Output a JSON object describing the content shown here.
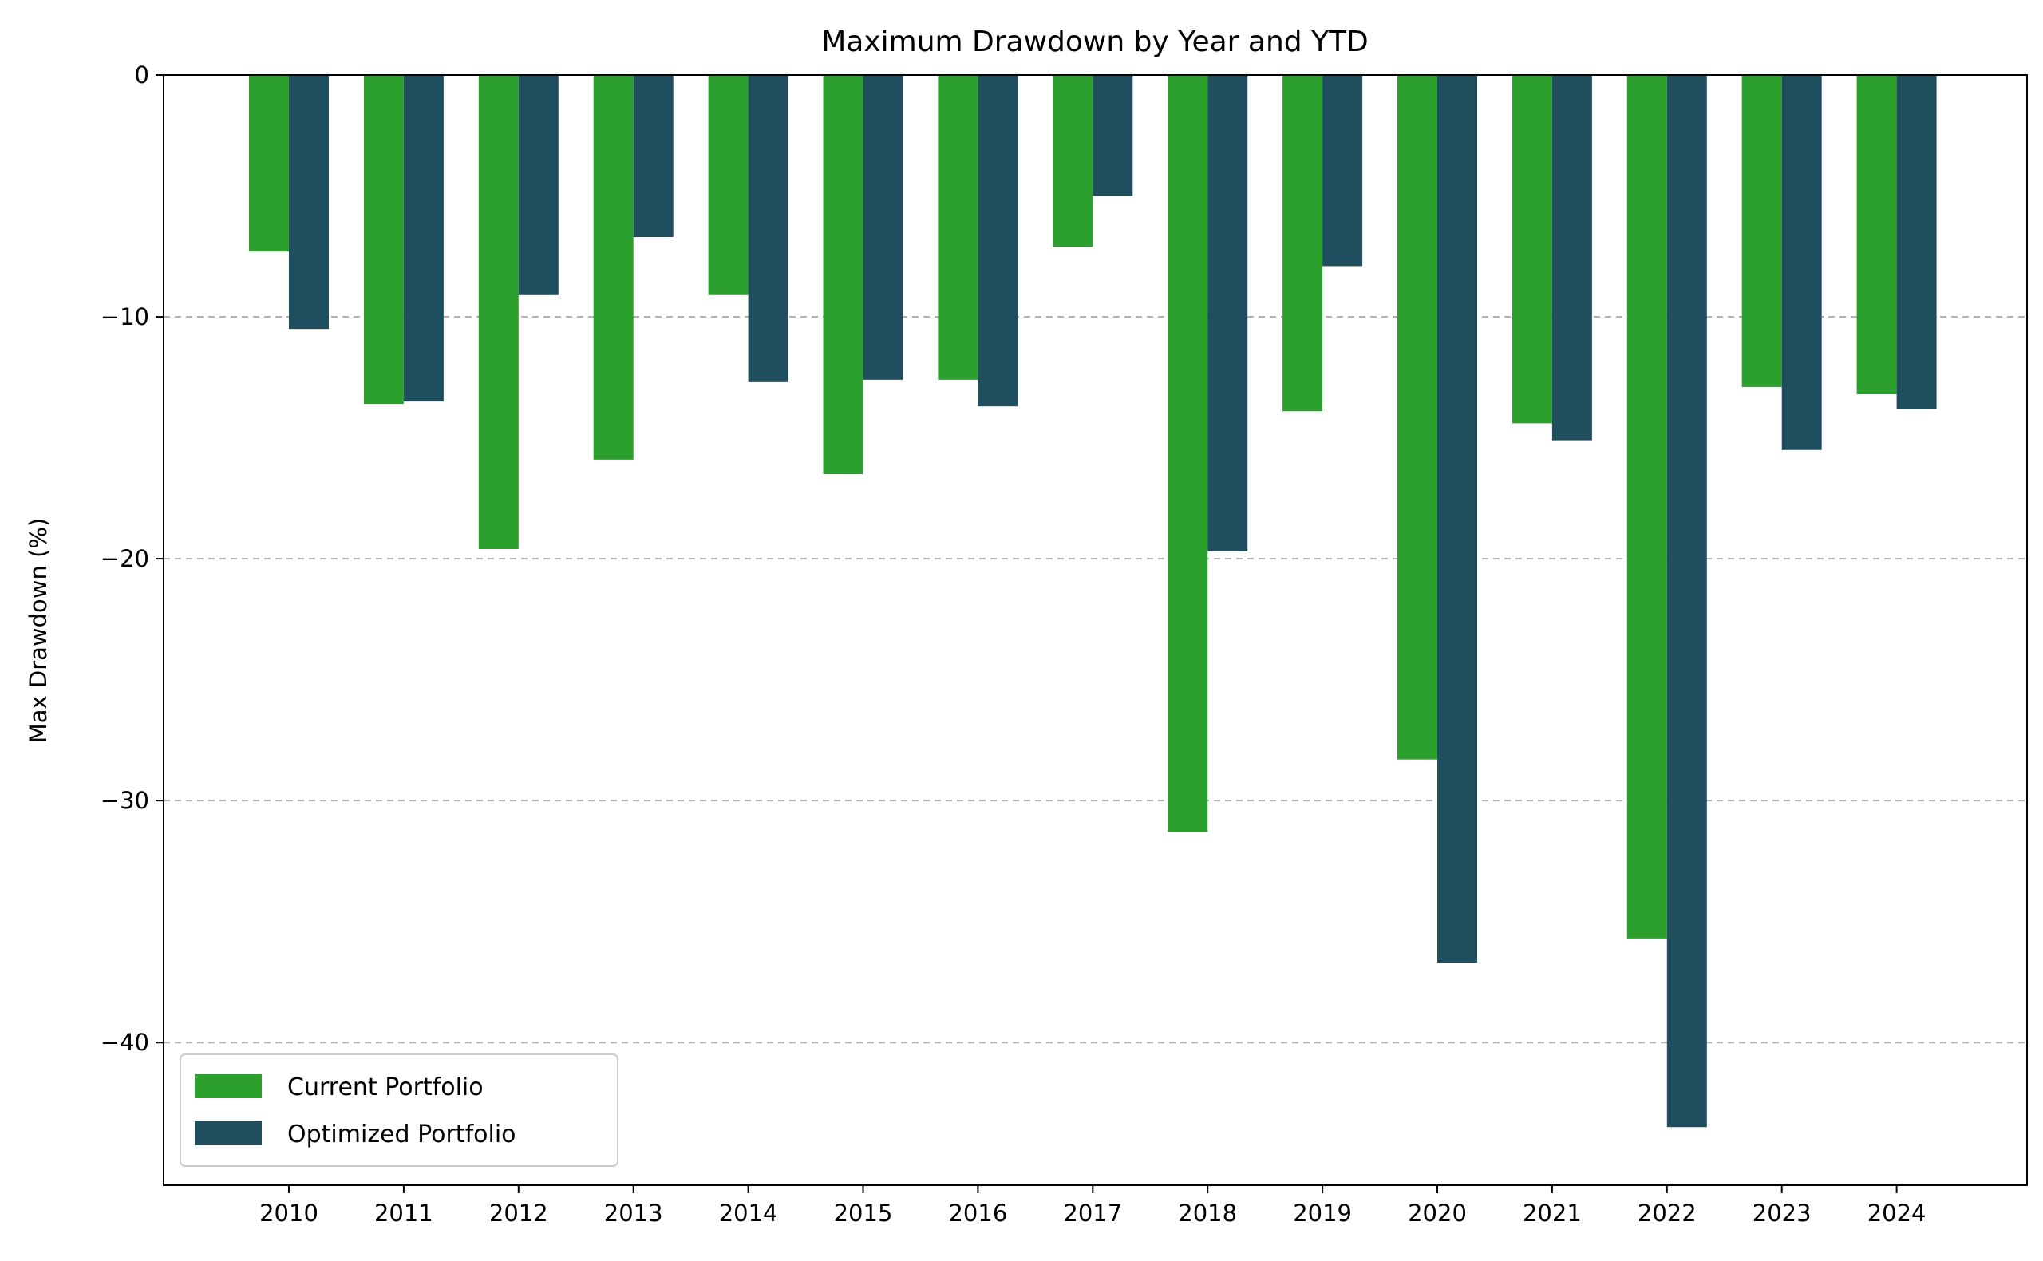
{
  "chart_data": {
    "type": "bar",
    "title": "Maximum Drawdown by Year and YTD",
    "xlabel": "",
    "ylabel": "Max Drawdown (%)",
    "categories": [
      "2010",
      "2011",
      "2012",
      "2013",
      "2014",
      "2015",
      "2016",
      "2017",
      "2018",
      "2019",
      "2020",
      "2021",
      "2022",
      "2023",
      "2024"
    ],
    "series": [
      {
        "name": "Current Portfolio",
        "color": "#2ca02c",
        "values": [
          -7.3,
          -13.6,
          -19.6,
          -15.9,
          -9.1,
          -16.5,
          -12.6,
          -7.1,
          -31.3,
          -13.9,
          -28.3,
          -14.4,
          -35.7,
          -12.9,
          -13.2
        ]
      },
      {
        "name": "Optimized Portfolio",
        "color": "#1f4e5f",
        "values": [
          -10.5,
          -13.5,
          -9.1,
          -6.7,
          -12.7,
          -12.6,
          -13.7,
          -5.0,
          -19.7,
          -7.9,
          -36.7,
          -15.1,
          -43.5,
          -15.5,
          -13.8
        ]
      }
    ],
    "ylim": [
      -45.9,
      0
    ],
    "yticks": [
      0,
      -10,
      -20,
      -30,
      -40
    ],
    "ytick_labels": [
      "0",
      "−10",
      "−20",
      "−30",
      "−40"
    ],
    "grid": "horizontal dashed",
    "legend_position": "lower-left"
  }
}
